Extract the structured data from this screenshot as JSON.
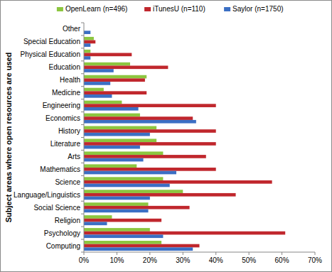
{
  "chart_data": {
    "type": "bar",
    "orientation": "horizontal",
    "y_label": "Subject areas where open resources are used",
    "categories": [
      "Other",
      "Special Education",
      "Physical Education",
      "Education",
      "Health",
      "Medicine",
      "Engineering",
      "Economics",
      "History",
      "Literature",
      "Arts",
      "Mathematics",
      "Science",
      "Language/Linguistics",
      "Social Science",
      "Religion",
      "Psychology",
      "Computing"
    ],
    "series": [
      {
        "name": "OpenLearn (n=496)",
        "color": "#8cc63f",
        "values": [
          0,
          3,
          2,
          14,
          19,
          6,
          11.5,
          17,
          22,
          22,
          24,
          16,
          24,
          30,
          19.5,
          8.5,
          20,
          23.5
        ]
      },
      {
        "name": "iTunesU (n=110)",
        "color": "#c0272d",
        "values": [
          0,
          3.5,
          14.5,
          25.5,
          18.5,
          19,
          40,
          33,
          40,
          40,
          37,
          40,
          57,
          46,
          32,
          23.5,
          61,
          35
        ]
      },
      {
        "name": "Saylor (n=1750)",
        "color": "#3b6fc4",
        "values": [
          2,
          2,
          2,
          9,
          8,
          8.5,
          16.5,
          34,
          20,
          17,
          18,
          28,
          26,
          20,
          19.5,
          7,
          24,
          33
        ]
      }
    ],
    "xlim": [
      0,
      70
    ],
    "xticks": [
      {
        "value": 0,
        "label": "0%"
      },
      {
        "value": 10,
        "label": "10%"
      },
      {
        "value": 20,
        "label": "20%"
      },
      {
        "value": 30,
        "label": "30%"
      },
      {
        "value": 40,
        "label": "40%"
      },
      {
        "value": 50,
        "label": "50%"
      },
      {
        "value": 60,
        "label": "60%"
      },
      {
        "value": 70,
        "label": "70%"
      }
    ],
    "grid": false,
    "legend": "top"
  }
}
